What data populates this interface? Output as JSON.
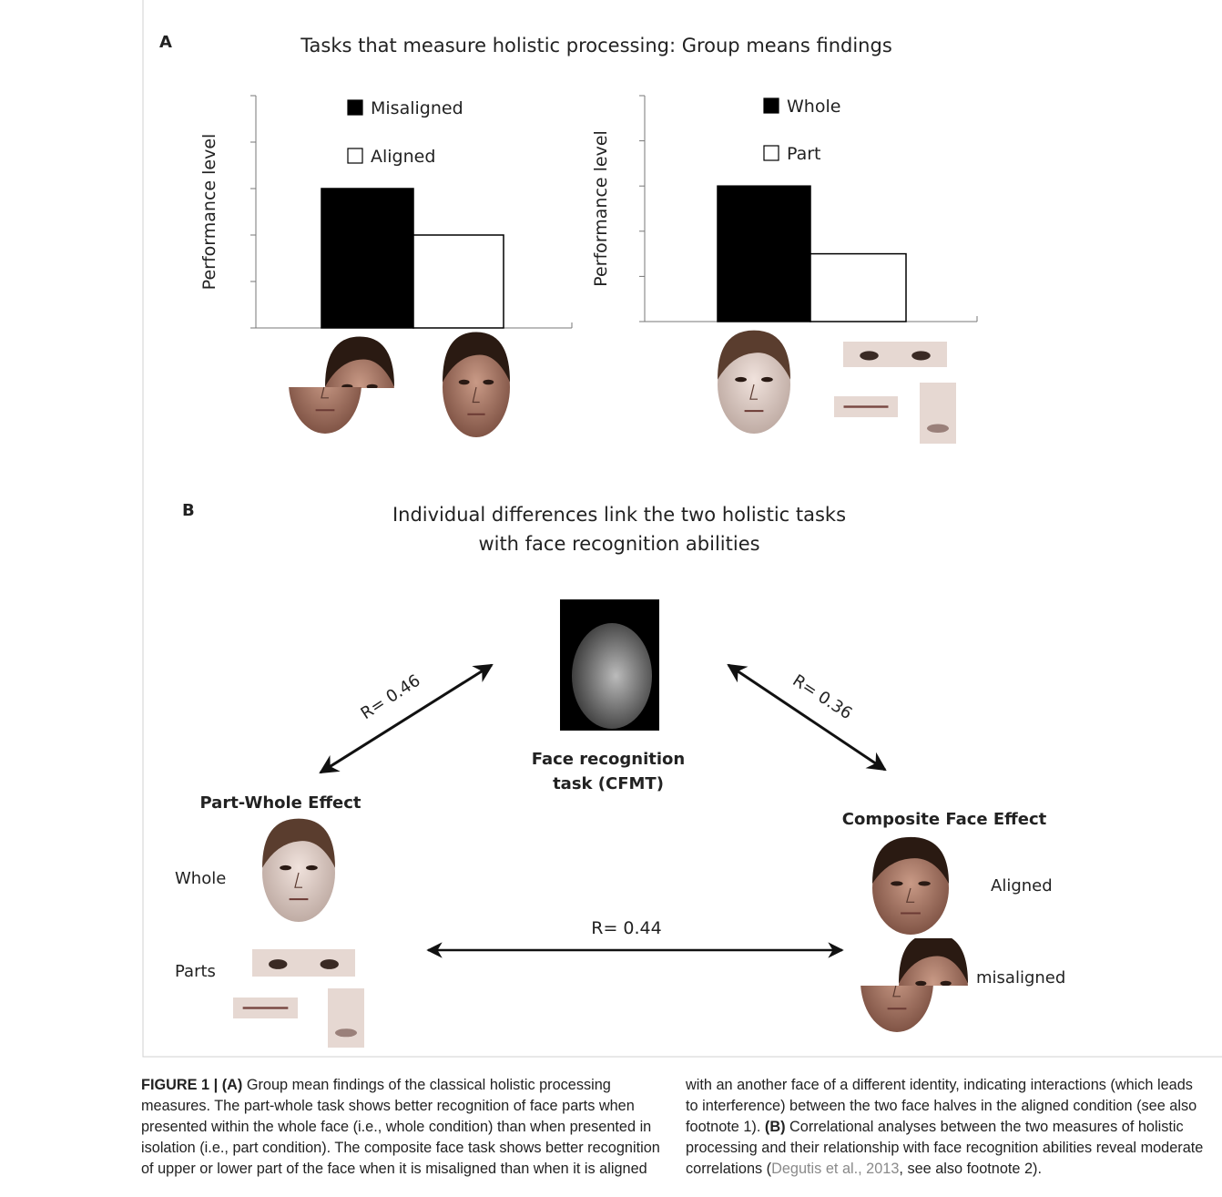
{
  "panel_a": {
    "label": "A",
    "title": "Tasks that measure holistic processing: Group means findings",
    "charts": [
      {
        "type": "bar",
        "y_label": "Performance level",
        "ylim": [
          0,
          5
        ],
        "yticks": [
          0,
          1,
          2,
          3,
          4,
          5
        ],
        "series": [
          {
            "name": "Misaligned",
            "color": "#000000",
            "values": [
              3
            ]
          },
          {
            "name": "Aligned",
            "color": "#ffffff",
            "values": [
              2
            ]
          }
        ]
      },
      {
        "type": "bar",
        "y_label": "Performance level",
        "ylim": [
          0,
          5
        ],
        "yticks": [
          0,
          1,
          2,
          3,
          4,
          5
        ],
        "series": [
          {
            "name": "Whole",
            "color": "#000000",
            "values": [
              3
            ]
          },
          {
            "name": "Part",
            "color": "#ffffff",
            "values": [
              1.5
            ]
          }
        ]
      }
    ]
  },
  "panel_b": {
    "label": "B",
    "title_lines": [
      "Individual differences link the two holistic tasks",
      "with face recognition abilities"
    ],
    "center_lines": [
      "Face recognition",
      "task (CFMT)"
    ],
    "part_whole": {
      "title": "Part-Whole Effect",
      "whole_label": "Whole",
      "parts_label": "Parts"
    },
    "composite": {
      "title": "Composite Face Effect",
      "aligned_label": "Aligned",
      "misaligned_label": "misaligned"
    },
    "links": [
      {
        "label": "R= 0.46"
      },
      {
        "label": "R= 0.36"
      },
      {
        "label": "R= 0.44"
      }
    ]
  },
  "caption": {
    "figure_label": "FIGURE 1 |",
    "a_marker": "(A)",
    "a_text": "Group mean findings of the classical holistic processing measures. The part-whole task shows better recognition of face parts when presented within the whole face (i.e., whole condition) than when presented in isolation (i.e., part condition). The composite face task shows better recognition of upper or lower part of the face when it is misaligned than when it is aligned with an another face of a different identity, indicating interactions (which leads to interference) between the two face halves in the aligned condition (see also footnote 1).",
    "b_marker": "(B)",
    "b_text": "Correlational analyses between the two measures of holistic processing and their relationship with face recognition abilities reveal moderate correlations (",
    "citation": "Degutis et al., 2013",
    "b_tail": ", see also footnote 2)."
  }
}
